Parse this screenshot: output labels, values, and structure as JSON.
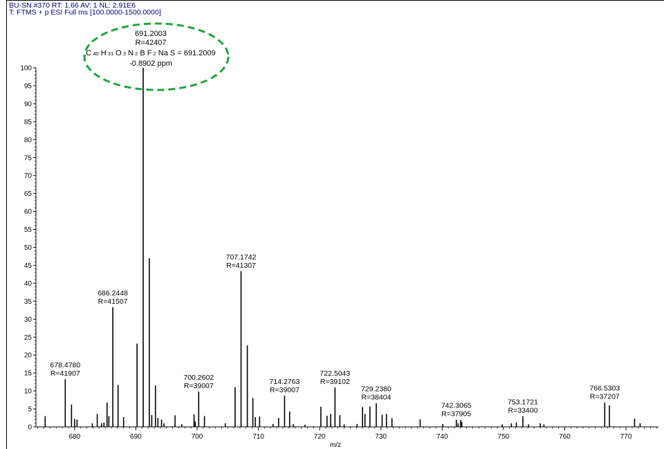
{
  "header": {
    "line1": "BU-SN #370   RT: 1.66   AV: 1   NL: 2.91E6",
    "line2": "T: FTMS + p ESI Full ms [100.0000-1500.0000]"
  },
  "annotation": {
    "mz": "691.2003",
    "resolution": "R=42407",
    "formula_parts": [
      {
        "t": "C",
        "sub": "40"
      },
      {
        "t": "H",
        "sub": "31"
      },
      {
        "t": "O",
        "sub": "3"
      },
      {
        "t": "N",
        "sub": "2"
      },
      {
        "t": "B",
        "sub": ""
      },
      {
        "t": "F",
        "sub": "2"
      },
      {
        "t": "Na",
        "sub": ""
      },
      {
        "t": "S",
        "sub": ""
      }
    ],
    "formula_value": "= 691.2009",
    "ppm": "-0.8902 ppm",
    "ellipse_color": "#1ea33a"
  },
  "chart_data": {
    "type": "bar",
    "xlabel": "m/z",
    "ylabel": "",
    "xlim": [
      673.7,
      775.3
    ],
    "ylim": [
      0,
      100
    ],
    "x_ticks": [
      680,
      690,
      700,
      710,
      720,
      730,
      740,
      750,
      760,
      770
    ],
    "y_ticks": [
      0,
      5,
      10,
      15,
      20,
      25,
      30,
      35,
      40,
      45,
      50,
      55,
      60,
      65,
      70,
      75,
      80,
      85,
      90,
      95,
      100
    ],
    "peaks": [
      {
        "x": 675.2,
        "y": 3.0
      },
      {
        "x": 678.478,
        "y": 13.3,
        "label": [
          "678.4780",
          "R=41907"
        ]
      },
      {
        "x": 679.5,
        "y": 6.2
      },
      {
        "x": 680.0,
        "y": 2.2
      },
      {
        "x": 680.4,
        "y": 2.0
      },
      {
        "x": 682.9,
        "y": 1.0
      },
      {
        "x": 683.7,
        "y": 3.6
      },
      {
        "x": 684.4,
        "y": 1.0
      },
      {
        "x": 684.8,
        "y": 1.2
      },
      {
        "x": 685.3,
        "y": 6.8
      },
      {
        "x": 685.6,
        "y": 3.0
      },
      {
        "x": 686.2448,
        "y": 33.3,
        "label": [
          "686.2448",
          "R=41507"
        ]
      },
      {
        "x": 687.1,
        "y": 11.7
      },
      {
        "x": 688.0,
        "y": 2.7
      },
      {
        "x": 690.2,
        "y": 23.2
      },
      {
        "x": 691.2003,
        "y": 100.0
      },
      {
        "x": 692.2,
        "y": 47.0
      },
      {
        "x": 692.6,
        "y": 3.3
      },
      {
        "x": 693.2,
        "y": 11.5
      },
      {
        "x": 693.6,
        "y": 2.5
      },
      {
        "x": 694.2,
        "y": 2.0
      },
      {
        "x": 694.6,
        "y": 1.0
      },
      {
        "x": 696.4,
        "y": 3.2
      },
      {
        "x": 697.5,
        "y": 0.7
      },
      {
        "x": 699.5,
        "y": 3.5
      },
      {
        "x": 699.7,
        "y": 1.5
      },
      {
        "x": 700.2602,
        "y": 9.8,
        "label": [
          "700.2602",
          "R=39007"
        ]
      },
      {
        "x": 701.2,
        "y": 3.0
      },
      {
        "x": 704.6,
        "y": 1.0
      },
      {
        "x": 706.2,
        "y": 11.0
      },
      {
        "x": 707.1742,
        "y": 43.4,
        "label": [
          "707.1742",
          "R=41307"
        ]
      },
      {
        "x": 708.2,
        "y": 22.7
      },
      {
        "x": 709.1,
        "y": 8.0
      },
      {
        "x": 709.5,
        "y": 2.7
      },
      {
        "x": 710.2,
        "y": 2.9
      },
      {
        "x": 712.4,
        "y": 0.8
      },
      {
        "x": 713.3,
        "y": 2.5
      },
      {
        "x": 714.2763,
        "y": 8.7,
        "label": [
          "714.2763",
          "R=39007"
        ]
      },
      {
        "x": 715.1,
        "y": 4.3
      },
      {
        "x": 715.7,
        "y": 0.8
      },
      {
        "x": 717.6,
        "y": 0.6
      },
      {
        "x": 720.2,
        "y": 5.6
      },
      {
        "x": 721.2,
        "y": 3.1
      },
      {
        "x": 721.8,
        "y": 3.6
      },
      {
        "x": 722.5043,
        "y": 11.0,
        "label": [
          "722.5043",
          "R=39102"
        ]
      },
      {
        "x": 723.3,
        "y": 3.3
      },
      {
        "x": 724.0,
        "y": 0.7
      },
      {
        "x": 726.1,
        "y": 0.8
      },
      {
        "x": 727.0,
        "y": 5.5
      },
      {
        "x": 727.4,
        "y": 3.6
      },
      {
        "x": 728.2,
        "y": 5.7
      },
      {
        "x": 729.238,
        "y": 6.6,
        "label": [
          "729.2380",
          "R=38404"
        ]
      },
      {
        "x": 730.2,
        "y": 3.4
      },
      {
        "x": 730.9,
        "y": 3.6
      },
      {
        "x": 731.8,
        "y": 2.4
      },
      {
        "x": 736.4,
        "y": 2.1
      },
      {
        "x": 740.1,
        "y": 0.8
      },
      {
        "x": 742.3065,
        "y": 2.0,
        "label": [
          "742.3065",
          "R=37905"
        ]
      },
      {
        "x": 742.6,
        "y": 1.0
      },
      {
        "x": 743.0,
        "y": 1.9
      },
      {
        "x": 743.2,
        "y": 1.4
      },
      {
        "x": 749.8,
        "y": 0.7
      },
      {
        "x": 751.3,
        "y": 1.0
      },
      {
        "x": 752.1,
        "y": 1.2
      },
      {
        "x": 753.1721,
        "y": 3.0,
        "label": [
          "753.1721",
          "R=33400"
        ]
      },
      {
        "x": 754.1,
        "y": 0.7
      },
      {
        "x": 756.0,
        "y": 1.0
      },
      {
        "x": 756.6,
        "y": 0.7
      },
      {
        "x": 766.5303,
        "y": 6.8,
        "label": [
          "766.5303",
          "R=37207"
        ]
      },
      {
        "x": 767.3,
        "y": 6.0
      },
      {
        "x": 771.4,
        "y": 2.3
      },
      {
        "x": 772.3,
        "y": 1.0
      }
    ]
  }
}
